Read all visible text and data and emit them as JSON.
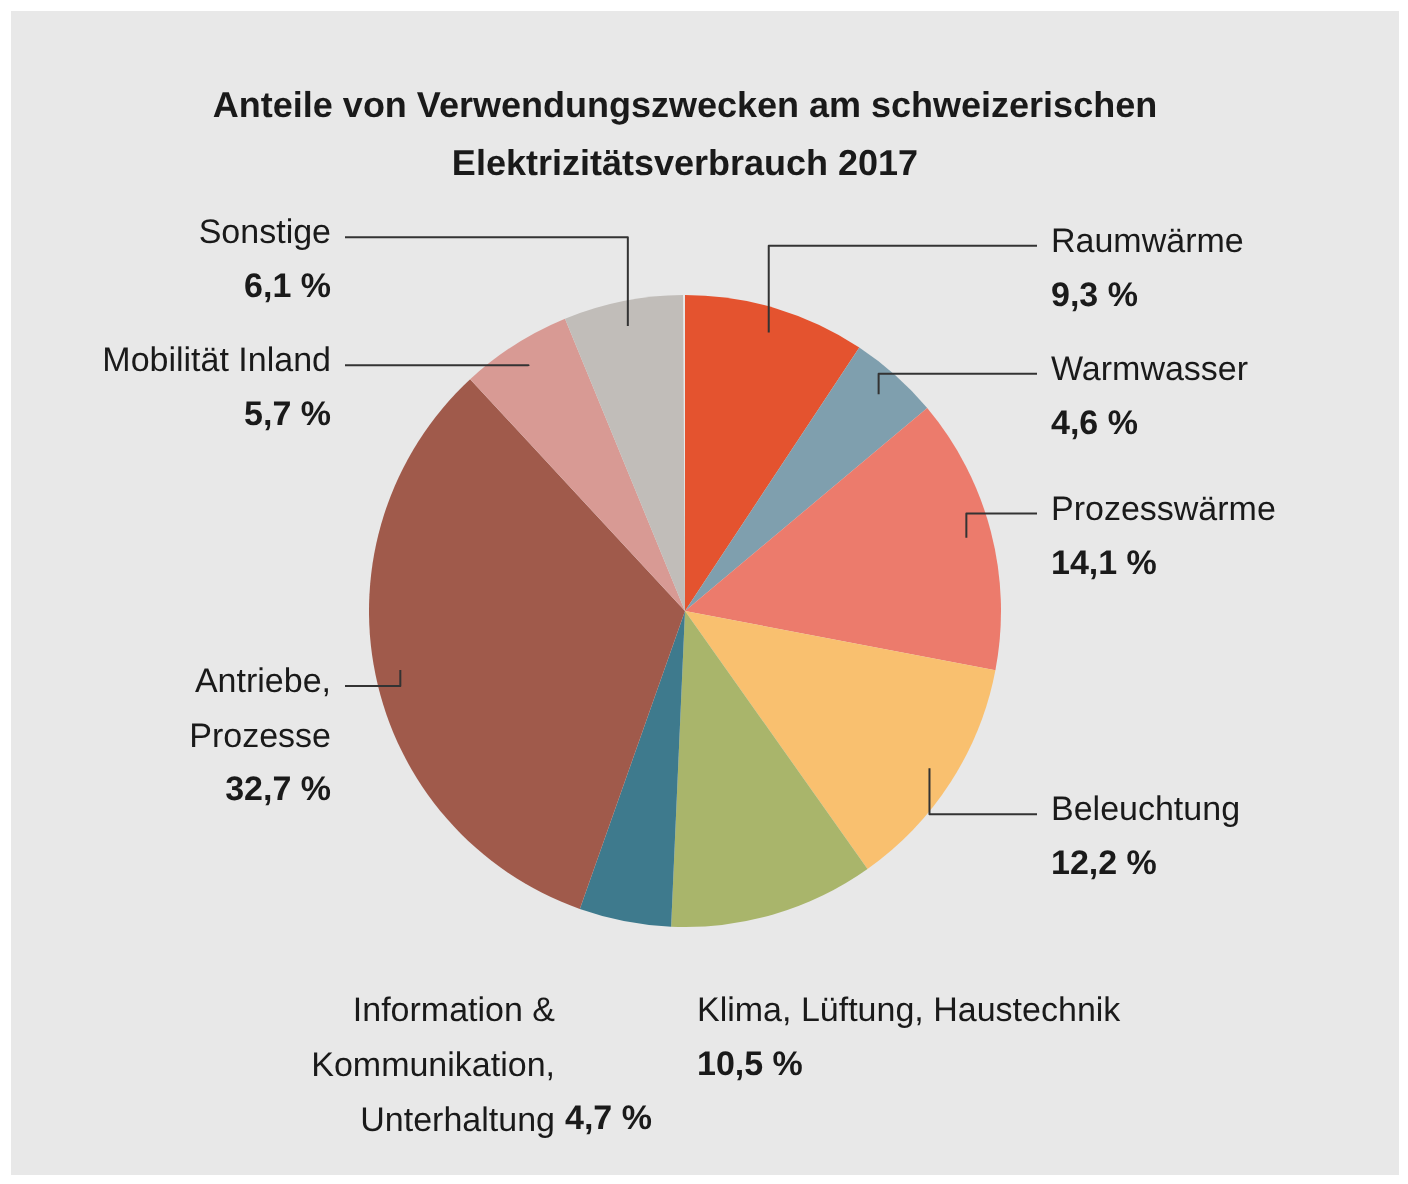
{
  "chart_data": {
    "type": "pie",
    "title": "Anteile von Verwendungszwecken am schweizerischen Elektrizitätsverbrauch 2017",
    "categories": [
      "Raumwärme",
      "Warmwasser",
      "Prozesswärme",
      "Beleuchtung",
      "Klima, Lüftung, Haustechnik",
      "Information &\nKommunikation,\nUnterhaltung",
      "Antriebe,\nProzesse",
      "Mobilität Inland",
      "Sonstige"
    ],
    "values": [
      9.3,
      4.6,
      14.1,
      12.2,
      10.5,
      4.7,
      32.7,
      5.7,
      6.1
    ],
    "colors": [
      "#e4532f",
      "#7f9fae",
      "#ec7b6c",
      "#f9c06f",
      "#a9b56b",
      "#3e7a8d",
      "#a05a4b",
      "#d89a94",
      "#c1bdb9"
    ],
    "value_labels": [
      "9,3 %",
      "4,6 %",
      "14,1 %",
      "12,2 %",
      "10,5 %",
      "4,7 %",
      "32,7 %",
      "5,7 %",
      "6,1 %"
    ]
  }
}
